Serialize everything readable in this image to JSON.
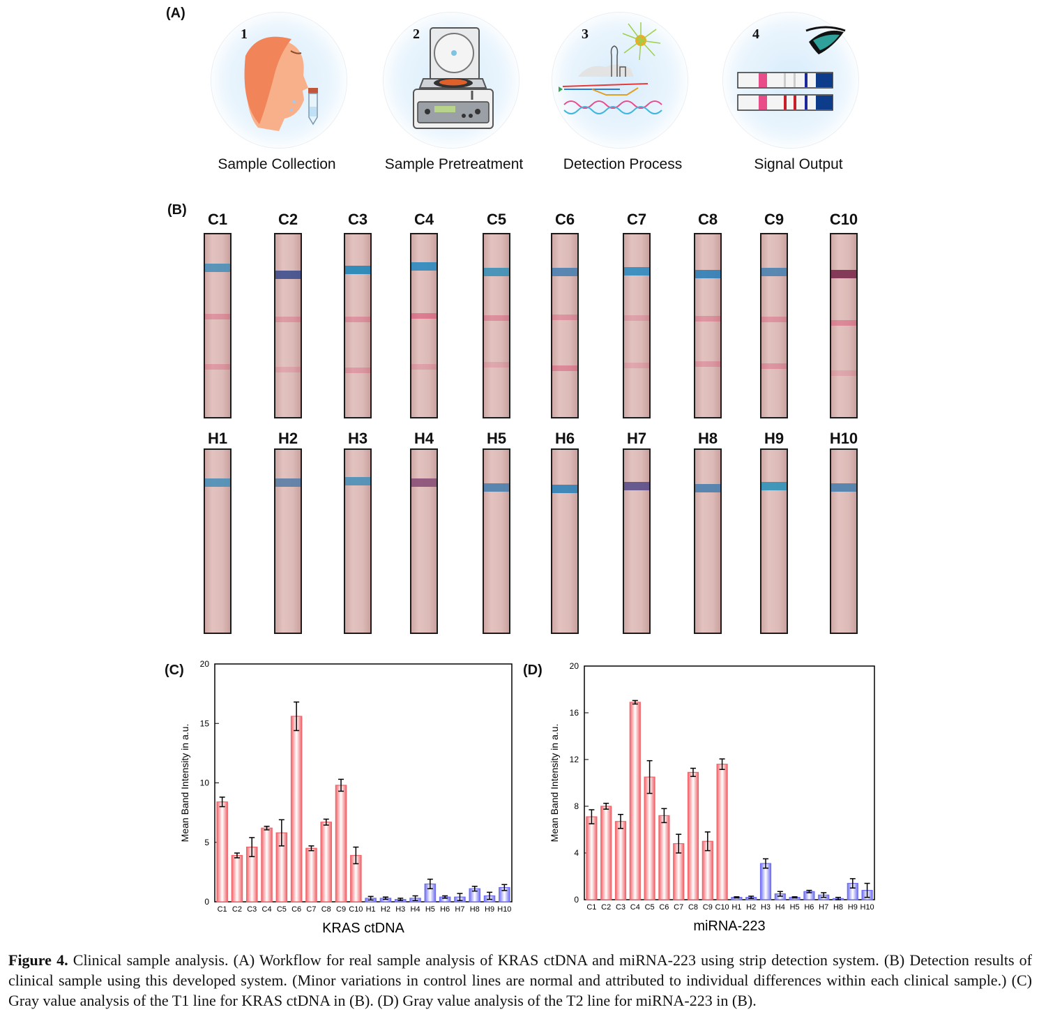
{
  "panels": {
    "A": "(A)",
    "B": "(B)",
    "C": "(C)",
    "D": "(D)"
  },
  "workflow": [
    {
      "num": "1",
      "label": "Sample Collection"
    },
    {
      "num": "2",
      "label": "Sample Pretreatment"
    },
    {
      "num": "3",
      "label": "Detection Process"
    },
    {
      "num": "4",
      "label": "Signal Output"
    }
  ],
  "strips": {
    "clinical": [
      "C1",
      "C2",
      "C3",
      "C4",
      "C5",
      "C6",
      "C7",
      "C8",
      "C9",
      "C10"
    ],
    "healthy": [
      "H1",
      "H2",
      "H3",
      "H4",
      "H5",
      "H6",
      "H7",
      "H8",
      "H9",
      "H10"
    ]
  },
  "chart_data": [
    {
      "type": "bar",
      "title": "",
      "xlabel": "KRAS ctDNA",
      "ylabel": "Mean Band Intensity in a.u.",
      "ylim": [
        0,
        20
      ],
      "yticks": [
        0,
        5,
        10,
        15,
        20
      ],
      "categories": [
        "C1",
        "C2",
        "C3",
        "C4",
        "C5",
        "C6",
        "C7",
        "C8",
        "C9",
        "C10",
        "H1",
        "H2",
        "H3",
        "H4",
        "H5",
        "H6",
        "H7",
        "H8",
        "H9",
        "H10"
      ],
      "values": [
        8.4,
        3.9,
        4.6,
        6.2,
        5.8,
        15.6,
        4.5,
        6.7,
        9.8,
        3.9,
        0.3,
        0.3,
        0.2,
        0.3,
        1.5,
        0.4,
        0.4,
        1.1,
        0.5,
        1.2
      ],
      "errors": [
        0.4,
        0.2,
        0.8,
        0.15,
        1.1,
        1.2,
        0.2,
        0.25,
        0.5,
        0.7,
        0.15,
        0.1,
        0.1,
        0.2,
        0.4,
        0.1,
        0.3,
        0.2,
        0.3,
        0.25
      ],
      "colors": {
        "clinical": "#f0646a",
        "healthy": "#6f6ff0"
      }
    },
    {
      "type": "bar",
      "title": "",
      "xlabel": "miRNA-223",
      "ylabel": "Mean Band Intensity in a.u.",
      "ylim": [
        0,
        20
      ],
      "yticks": [
        0,
        4,
        8,
        12,
        16,
        20
      ],
      "categories": [
        "C1",
        "C2",
        "C3",
        "C4",
        "C5",
        "C6",
        "C7",
        "C8",
        "C9",
        "C10",
        "H1",
        "H2",
        "H3",
        "H4",
        "H5",
        "H6",
        "H7",
        "H8",
        "H9",
        "H10"
      ],
      "values": [
        7.1,
        8.0,
        6.7,
        16.9,
        10.5,
        7.2,
        4.8,
        10.9,
        5.0,
        11.6,
        0.2,
        0.2,
        3.1,
        0.5,
        0.2,
        0.7,
        0.4,
        0.1,
        1.4,
        0.8
      ],
      "errors": [
        0.6,
        0.25,
        0.6,
        0.15,
        1.4,
        0.6,
        0.8,
        0.35,
        0.8,
        0.45,
        0.05,
        0.1,
        0.4,
        0.2,
        0.05,
        0.1,
        0.2,
        0.1,
        0.4,
        0.6
      ],
      "colors": {
        "clinical": "#f0646a",
        "healthy": "#6f6ff0"
      }
    }
  ],
  "caption": {
    "label": "Figure 4.",
    "text": "Clinical sample analysis. (A) Workflow for real sample analysis of KRAS ctDNA and miRNA-223 using strip detection system. (B) Detection results of clinical sample using this developed system. (Minor variations in control lines are normal and attributed to individual differences within each clinical sample.) (C) Gray value analysis of the T1 line for KRAS ctDNA in (B). (D) Gray value analysis of the T2 line for miRNA-223 in (B)."
  }
}
